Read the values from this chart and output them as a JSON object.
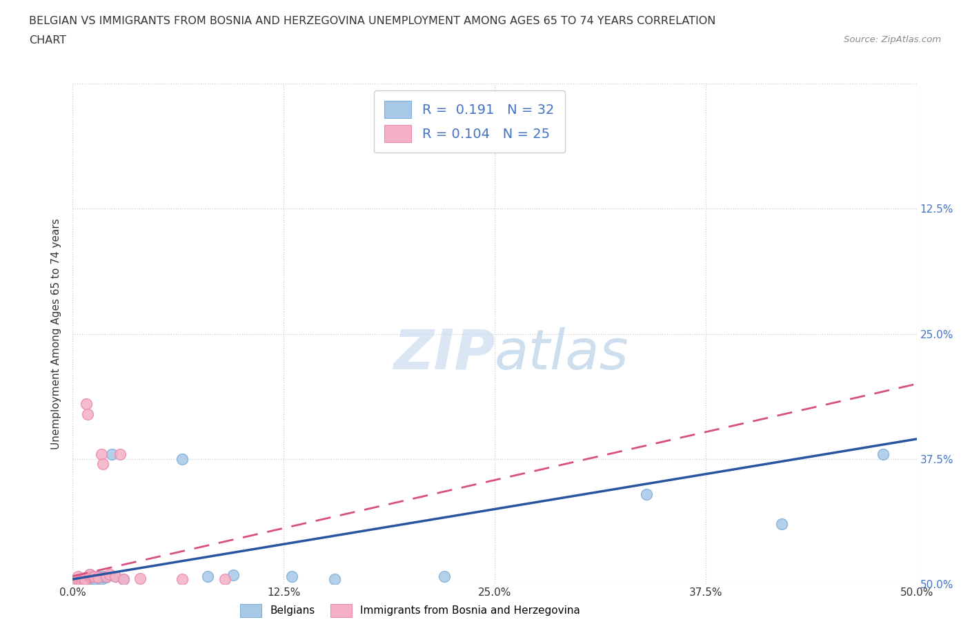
{
  "title_line1": "BELGIAN VS IMMIGRANTS FROM BOSNIA AND HERZEGOVINA UNEMPLOYMENT AMONG AGES 65 TO 74 YEARS CORRELATION",
  "title_line2": "CHART",
  "source_text": "Source: ZipAtlas.com",
  "ylabel": "Unemployment Among Ages 65 to 74 years",
  "xlim": [
    0.0,
    0.5
  ],
  "ylim": [
    0.0,
    0.5
  ],
  "xtick_vals": [
    0.0,
    0.125,
    0.25,
    0.375,
    0.5
  ],
  "xtick_labels": [
    "0.0%",
    "12.5%",
    "25.0%",
    "37.5%",
    "50.0%"
  ],
  "ytick_vals": [
    0.0,
    0.125,
    0.25,
    0.375,
    0.5
  ],
  "right_ytick_labels": [
    "50.0%",
    "37.5%",
    "25.0%",
    "12.5%",
    ""
  ],
  "belgian_R": "0.191",
  "belgian_N": "32",
  "bosnian_R": "0.104",
  "bosnian_N": "25",
  "belgian_dot_color": "#a8c8e8",
  "bosnian_dot_color": "#f5b0c5",
  "belgian_dot_edge": "#7aaed4",
  "bosnian_dot_edge": "#e888aa",
  "belgian_line_color": "#2855a0",
  "bosnian_line_color": "#d85080",
  "watermark_color": "#ccdcf0",
  "background_color": "#ffffff",
  "grid_color": "#cccccc",
  "axis_label_color": "#4472c4",
  "text_color": "#333333",
  "belgian_x": [
    0.003,
    0.004,
    0.005,
    0.005,
    0.006,
    0.007,
    0.007,
    0.008,
    0.008,
    0.009,
    0.01,
    0.01,
    0.011,
    0.012,
    0.013,
    0.015,
    0.016,
    0.017,
    0.018,
    0.02,
    0.023,
    0.025,
    0.03,
    0.065,
    0.08,
    0.095,
    0.13,
    0.155,
    0.22,
    0.34,
    0.42,
    0.48
  ],
  "belgian_y": [
    0.003,
    0.005,
    0.004,
    0.006,
    0.005,
    0.003,
    0.006,
    0.005,
    0.007,
    0.004,
    0.006,
    0.01,
    0.005,
    0.007,
    0.005,
    0.008,
    0.006,
    0.005,
    0.008,
    0.007,
    0.13,
    0.008,
    0.005,
    0.125,
    0.008,
    0.009,
    0.008,
    0.005,
    0.008,
    0.09,
    0.06,
    0.13
  ],
  "bosnian_x": [
    0.002,
    0.003,
    0.004,
    0.005,
    0.005,
    0.006,
    0.007,
    0.007,
    0.008,
    0.009,
    0.01,
    0.01,
    0.012,
    0.013,
    0.015,
    0.017,
    0.018,
    0.02,
    0.022,
    0.025,
    0.028,
    0.03,
    0.04,
    0.065,
    0.09
  ],
  "bosnian_y": [
    0.003,
    0.008,
    0.003,
    0.002,
    0.003,
    0.004,
    0.003,
    0.005,
    0.18,
    0.17,
    0.008,
    0.01,
    0.008,
    0.008,
    0.007,
    0.13,
    0.12,
    0.008,
    0.01,
    0.008,
    0.13,
    0.005,
    0.006,
    0.005,
    0.005
  ]
}
